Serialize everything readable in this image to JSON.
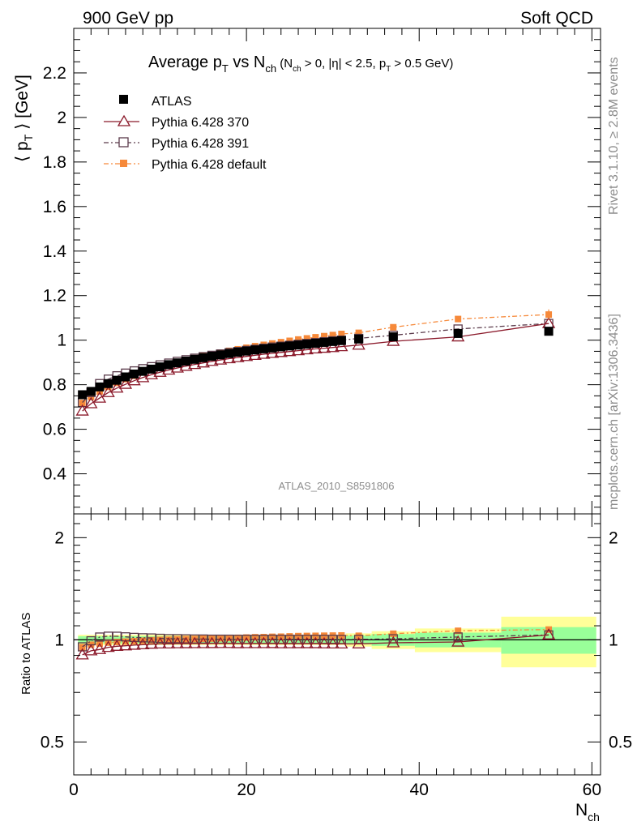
{
  "header": {
    "left": "900 GeV pp",
    "right": "Soft QCD",
    "side_top": "Rivet 3.1.10, ≥ 2.8M events",
    "side_bottom": "mcplots.cern.ch [arXiv:1306.3436]"
  },
  "title": {
    "prefix": "Average p",
    "p_sub": "T",
    "vs": " vs N",
    "n_sub": "ch",
    "cond_open": " (N",
    "cond_n_sub": "ch",
    "cond_mid": " > 0, |η| < 2.5, p",
    "cond_p_sub": "T",
    "cond_end": " > 0.5 GeV)"
  },
  "watermark": "ATLAS_2010_S8591806",
  "ylabel_main": {
    "open": "⟨ p",
    "sub": "T",
    "close": " ⟩ [GeV]"
  },
  "ylabel_ratio": "Ratio to ATLAS",
  "xlabel": {
    "main": "N",
    "sub": "ch"
  },
  "colors": {
    "atlas": "#000000",
    "p370": "#8b1a2b",
    "p391": "#5a3a4a",
    "pdef": "#f6893a",
    "band_inner": "#99ff99",
    "band_outer": "#ffff99"
  },
  "chart_data": {
    "type": "scatter",
    "x": [
      1,
      2,
      3,
      4,
      5,
      6,
      7,
      8,
      9,
      10,
      11,
      12,
      13,
      14,
      15,
      16,
      17,
      18,
      19,
      20,
      21,
      22,
      23,
      24,
      25,
      26,
      27,
      28,
      29,
      30,
      31,
      33,
      37,
      44.5,
      55
    ],
    "x_bins": [
      [
        0.5,
        1.5
      ],
      [
        1.5,
        2.5
      ],
      [
        2.5,
        3.5
      ],
      [
        3.5,
        4.5
      ],
      [
        4.5,
        5.5
      ],
      [
        5.5,
        6.5
      ],
      [
        6.5,
        7.5
      ],
      [
        7.5,
        8.5
      ],
      [
        8.5,
        9.5
      ],
      [
        9.5,
        10.5
      ],
      [
        10.5,
        11.5
      ],
      [
        11.5,
        12.5
      ],
      [
        12.5,
        13.5
      ],
      [
        13.5,
        14.5
      ],
      [
        14.5,
        15.5
      ],
      [
        15.5,
        16.5
      ],
      [
        16.5,
        17.5
      ],
      [
        17.5,
        18.5
      ],
      [
        18.5,
        19.5
      ],
      [
        19.5,
        20.5
      ],
      [
        20.5,
        21.5
      ],
      [
        21.5,
        22.5
      ],
      [
        22.5,
        23.5
      ],
      [
        23.5,
        24.5
      ],
      [
        24.5,
        25.5
      ],
      [
        25.5,
        26.5
      ],
      [
        26.5,
        27.5
      ],
      [
        27.5,
        28.5
      ],
      [
        28.5,
        29.5
      ],
      [
        29.5,
        30.5
      ],
      [
        30.5,
        31.5
      ],
      [
        31.5,
        34.5
      ],
      [
        34.5,
        39.5
      ],
      [
        39.5,
        49.5
      ],
      [
        49.5,
        60.5
      ]
    ],
    "series": [
      {
        "name": "ATLAS",
        "key": "atlas",
        "values": [
          0.755,
          0.77,
          0.79,
          0.805,
          0.82,
          0.835,
          0.848,
          0.86,
          0.87,
          0.88,
          0.89,
          0.898,
          0.906,
          0.914,
          0.921,
          0.928,
          0.934,
          0.94,
          0.946,
          0.951,
          0.956,
          0.961,
          0.965,
          0.97,
          0.974,
          0.978,
          0.982,
          0.986,
          0.99,
          0.994,
          0.998,
          1.005,
          1.015,
          1.03,
          1.04
        ]
      },
      {
        "name": "Pythia 6.428 370",
        "key": "p370",
        "values": [
          0.682,
          0.715,
          0.74,
          0.765,
          0.785,
          0.802,
          0.818,
          0.832,
          0.845,
          0.856,
          0.866,
          0.875,
          0.883,
          0.891,
          0.898,
          0.905,
          0.911,
          0.917,
          0.922,
          0.927,
          0.932,
          0.937,
          0.941,
          0.945,
          0.949,
          0.953,
          0.957,
          0.961,
          0.964,
          0.967,
          0.971,
          0.978,
          0.995,
          1.015,
          1.075
        ]
      },
      {
        "name": "Pythia 6.428 391",
        "key": "p391",
        "values": [
          0.72,
          0.765,
          0.805,
          0.825,
          0.84,
          0.852,
          0.862,
          0.872,
          0.881,
          0.889,
          0.897,
          0.905,
          0.912,
          0.919,
          0.926,
          0.932,
          0.938,
          0.944,
          0.949,
          0.954,
          0.959,
          0.964,
          0.969,
          0.973,
          0.977,
          0.981,
          0.985,
          0.989,
          0.993,
          0.997,
          1.0,
          1.008,
          1.022,
          1.05,
          1.075
        ]
      },
      {
        "name": "Pythia 6.428 default",
        "key": "pdef",
        "values": [
          0.718,
          0.745,
          0.77,
          0.79,
          0.808,
          0.825,
          0.84,
          0.855,
          0.868,
          0.88,
          0.891,
          0.901,
          0.91,
          0.919,
          0.928,
          0.936,
          0.944,
          0.952,
          0.959,
          0.966,
          0.973,
          0.979,
          0.985,
          0.991,
          0.997,
          1.003,
          1.008,
          1.013,
          1.018,
          1.023,
          1.028,
          1.033,
          1.058,
          1.095,
          1.115
        ]
      }
    ],
    "ratio_band_inner": [
      0.025,
      0.025,
      0.025,
      0.025,
      0.025,
      0.025,
      0.025,
      0.025,
      0.025,
      0.025,
      0.025,
      0.025,
      0.025,
      0.025,
      0.025,
      0.025,
      0.025,
      0.025,
      0.025,
      0.025,
      0.025,
      0.025,
      0.025,
      0.025,
      0.025,
      0.025,
      0.025,
      0.025,
      0.025,
      0.025,
      0.025,
      0.03,
      0.04,
      0.05,
      0.09
    ],
    "ratio_band_outer": [
      0.035,
      0.035,
      0.035,
      0.035,
      0.035,
      0.035,
      0.035,
      0.035,
      0.035,
      0.035,
      0.035,
      0.035,
      0.035,
      0.035,
      0.035,
      0.035,
      0.035,
      0.035,
      0.035,
      0.035,
      0.035,
      0.035,
      0.035,
      0.035,
      0.035,
      0.035,
      0.035,
      0.035,
      0.035,
      0.035,
      0.035,
      0.045,
      0.06,
      0.08,
      0.17
    ],
    "xlim": [
      0,
      61
    ],
    "ylim": [
      0.22,
      2.4
    ],
    "ratio_ylim": [
      0.4,
      2.35
    ],
    "ratio_log": true,
    "xticks": [
      0,
      20,
      40,
      60
    ],
    "yticks": [
      0.4,
      0.6,
      0.8,
      1,
      1.2,
      1.4,
      1.6,
      1.8,
      2,
      2.2
    ],
    "ratio_yticks": [
      0.5,
      1,
      2
    ],
    "legend_placement": "top-left"
  }
}
